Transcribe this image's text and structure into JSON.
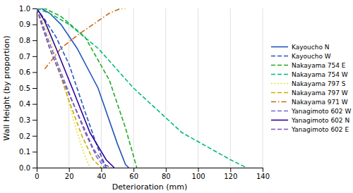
{
  "chart_data": {
    "type": "line",
    "xlabel": "Deterioration (mm)",
    "ylabel": "Wall Height (by proportion)",
    "xlim": [
      0,
      140
    ],
    "ylim": [
      0,
      1
    ],
    "xticks": [
      0,
      20,
      40,
      60,
      80,
      100,
      120,
      140
    ],
    "yticks": [
      {
        "value": 0,
        "label": "0.0"
      },
      0.1,
      0.2,
      0.3,
      0.4,
      0.5,
      0.6,
      0.7,
      0.8,
      0.9,
      {
        "value": 1.0,
        "label": "1.0"
      }
    ],
    "grid": "x",
    "legend": "right",
    "series": [
      {
        "name": "Kayoucho N",
        "color": "#2255bb",
        "line_style": "solid",
        "x": [
          0,
          3,
          8,
          15,
          25,
          38,
          50,
          55,
          57
        ],
        "values": [
          1.0,
          1.0,
          0.97,
          0.9,
          0.75,
          0.5,
          0.15,
          0.02,
          0.0
        ]
      },
      {
        "name": "Kayoucho W",
        "color": "#2255bb",
        "line_style": "dashed",
        "x": [
          0,
          5,
          12,
          20,
          30,
          38,
          43
        ],
        "values": [
          1.0,
          0.93,
          0.82,
          0.65,
          0.35,
          0.12,
          0.0
        ]
      },
      {
        "name": "Nakayama 754 E",
        "color": "#22aa22",
        "line_style": "dashed",
        "x": [
          0,
          5,
          15,
          30,
          45,
          55,
          62
        ],
        "values": [
          1.0,
          1.0,
          0.95,
          0.82,
          0.55,
          0.25,
          0.0
        ]
      },
      {
        "name": "Nakayama 754 W",
        "color": "#00bb77",
        "line_style": "dashed",
        "x": [
          0,
          8,
          20,
          38,
          60,
          90,
          120,
          130
        ],
        "values": [
          1.0,
          0.97,
          0.9,
          0.75,
          0.5,
          0.22,
          0.05,
          0.0
        ]
      },
      {
        "name": "Nakayama 797 S",
        "color": "#dddd00",
        "line_style": "dotted",
        "x": [
          0,
          3,
          8,
          13,
          18,
          25,
          30,
          33
        ],
        "values": [
          1.0,
          0.95,
          0.82,
          0.65,
          0.48,
          0.22,
          0.07,
          0.0
        ]
      },
      {
        "name": "Nakayama 797 W",
        "color": "#ccaa00",
        "line_style": "dashed",
        "x": [
          0,
          3,
          8,
          14,
          20,
          28,
          35,
          40
        ],
        "values": [
          1.0,
          0.9,
          0.75,
          0.6,
          0.42,
          0.2,
          0.05,
          0.0
        ]
      },
      {
        "name": "Nakayama 971 W",
        "color": "#cc6611",
        "line_style": "dashdot",
        "x": [
          5,
          15,
          25,
          35,
          45,
          52,
          55
        ],
        "values": [
          0.62,
          0.75,
          0.83,
          0.9,
          0.97,
          1.0,
          1.0
        ]
      },
      {
        "name": "Yanagimoto 602 W",
        "color": "#7766cc",
        "line_style": "dashed",
        "x": [
          0,
          3,
          8,
          15,
          22,
          30,
          37,
          42
        ],
        "values": [
          1.0,
          0.92,
          0.78,
          0.6,
          0.42,
          0.22,
          0.07,
          0.0
        ]
      },
      {
        "name": "Yanagimoto 602 N",
        "color": "#330099",
        "line_style": "solid",
        "x": [
          0,
          2,
          5,
          12,
          22,
          33,
          43,
          48
        ],
        "values": [
          1.0,
          0.97,
          0.92,
          0.75,
          0.5,
          0.22,
          0.05,
          0.0
        ]
      },
      {
        "name": "Yanagimoto 602 E",
        "color": "#7755bb",
        "line_style": "dashed",
        "x": [
          0,
          3,
          8,
          16,
          25,
          35,
          42,
          46
        ],
        "values": [
          1.0,
          0.9,
          0.75,
          0.55,
          0.35,
          0.12,
          0.02,
          0.0
        ]
      }
    ]
  }
}
